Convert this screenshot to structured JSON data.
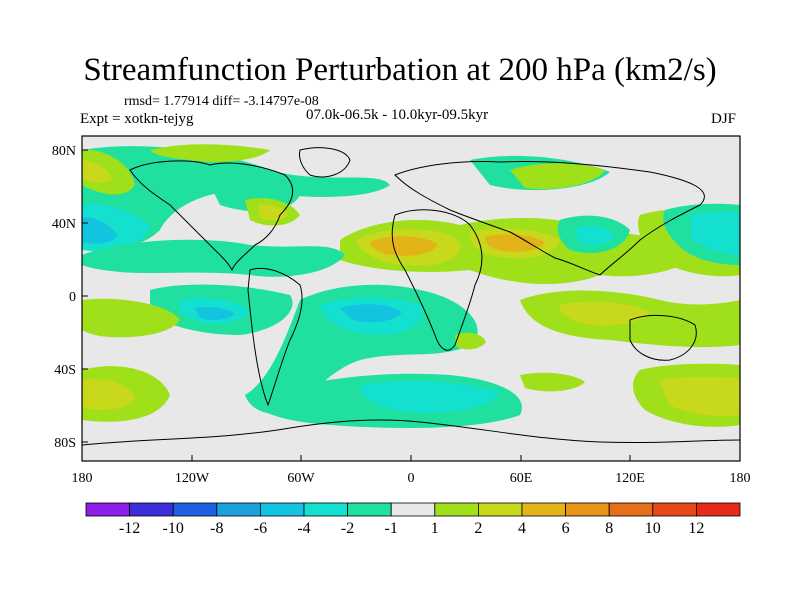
{
  "title": "Streamfunction Perturbation at 200 hPa (km2/s)",
  "stats_line": "rmsd= 1.77914  diff= -3.14797e-08",
  "experiment_label": "Expt = xotkn-tejyg",
  "period_label": "07.0k-06.5k - 10.0kyr-09.5kyr",
  "season_label": "DJF",
  "lat_labels": [
    "80N",
    "40N",
    "0",
    "40S",
    "80S"
  ],
  "lon_labels": [
    "180",
    "120W",
    "60W",
    "0",
    "60E",
    "120E",
    "180"
  ],
  "colorbar": {
    "labels": [
      "-12",
      "-10",
      "-8",
      "-6",
      "-4",
      "-2",
      "-1",
      "1",
      "2",
      "4",
      "6",
      "8",
      "10",
      "12"
    ],
    "colors": [
      "#8c1fe6",
      "#3c2fd9",
      "#1d5fe0",
      "#1aa2df",
      "#13c4e0",
      "#14e0d0",
      "#20e0a0",
      "#e8e8e8",
      "#9fe01a",
      "#c8d81a",
      "#e2b418",
      "#e6941a",
      "#e6701a",
      "#e64a1a",
      "#e62a18"
    ]
  },
  "field_colors": {
    "neutral": "#e8e8e8",
    "pos1": "#9fe01a",
    "pos2": "#c8d81a",
    "pos3": "#e2b418",
    "pos4": "#e6941a",
    "neg1": "#20e0a0",
    "neg2": "#14e0d0",
    "neg3": "#13c4e0"
  }
}
